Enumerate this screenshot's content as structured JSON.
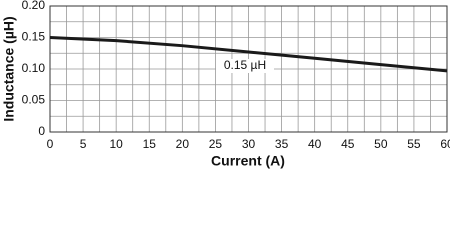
{
  "chart_data": {
    "type": "line",
    "x_label": "Current (A)",
    "y_label": "Inductance (µH)",
    "annotation": "0.15 µH",
    "x": [
      0,
      10,
      20,
      30,
      40,
      50,
      60
    ],
    "series": [
      {
        "name": "0.15 µH",
        "color": "#1a1a1a",
        "values": [
          0.15,
          0.145,
          0.137,
          0.127,
          0.117,
          0.107,
          0.097
        ]
      }
    ],
    "xlim": [
      0,
      60
    ],
    "xticks": [
      0,
      5,
      10,
      15,
      20,
      25,
      30,
      35,
      40,
      45,
      50,
      55,
      60
    ],
    "ylim": [
      0,
      0.2
    ],
    "yticks": [
      0,
      0.05,
      {
        "value": 0.1,
        "label": "0.10"
      },
      0.15,
      {
        "value": 0.2,
        "label": "0.20"
      }
    ],
    "grid": true
  }
}
